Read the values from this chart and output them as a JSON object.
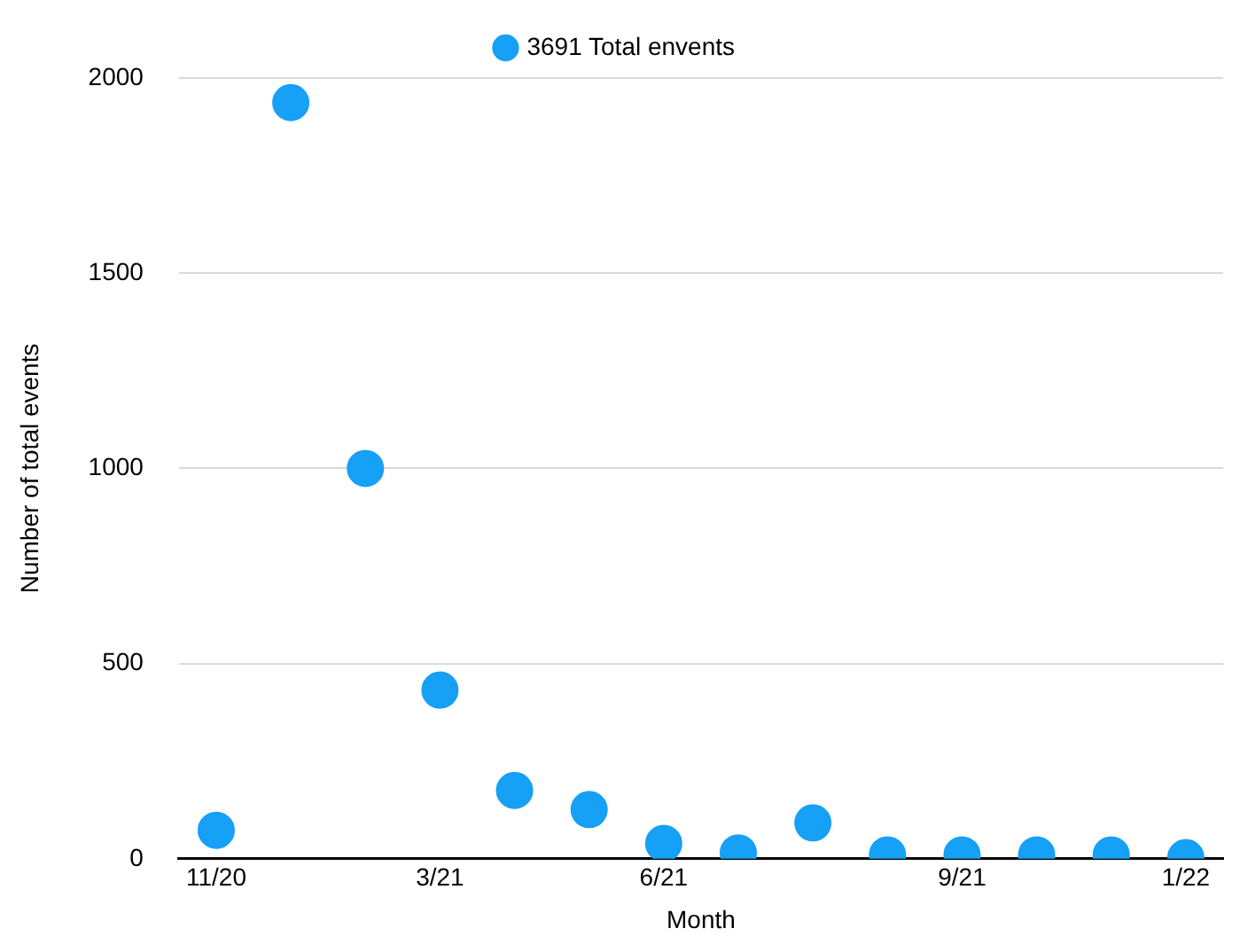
{
  "chart_data": {
    "type": "scatter",
    "xlabel": "Month",
    "ylabel": "Number of total events",
    "categories": [
      "11/20",
      null,
      null,
      "3/21",
      null,
      null,
      "6/21",
      null,
      null,
      null,
      "9/21",
      null,
      null,
      "1/22"
    ],
    "series": [
      {
        "name": "3691 Total envents",
        "color": "#16a0f6",
        "values": [
          73,
          1937,
          1000,
          432,
          175,
          126,
          39,
          15,
          92,
          10,
          10,
          10,
          10,
          3
        ]
      }
    ],
    "ylim": [
      0,
      2000
    ],
    "yticks": [
      0,
      500,
      1000,
      1500,
      2000
    ],
    "grid": "y",
    "legend": "top",
    "marker": "circle"
  }
}
